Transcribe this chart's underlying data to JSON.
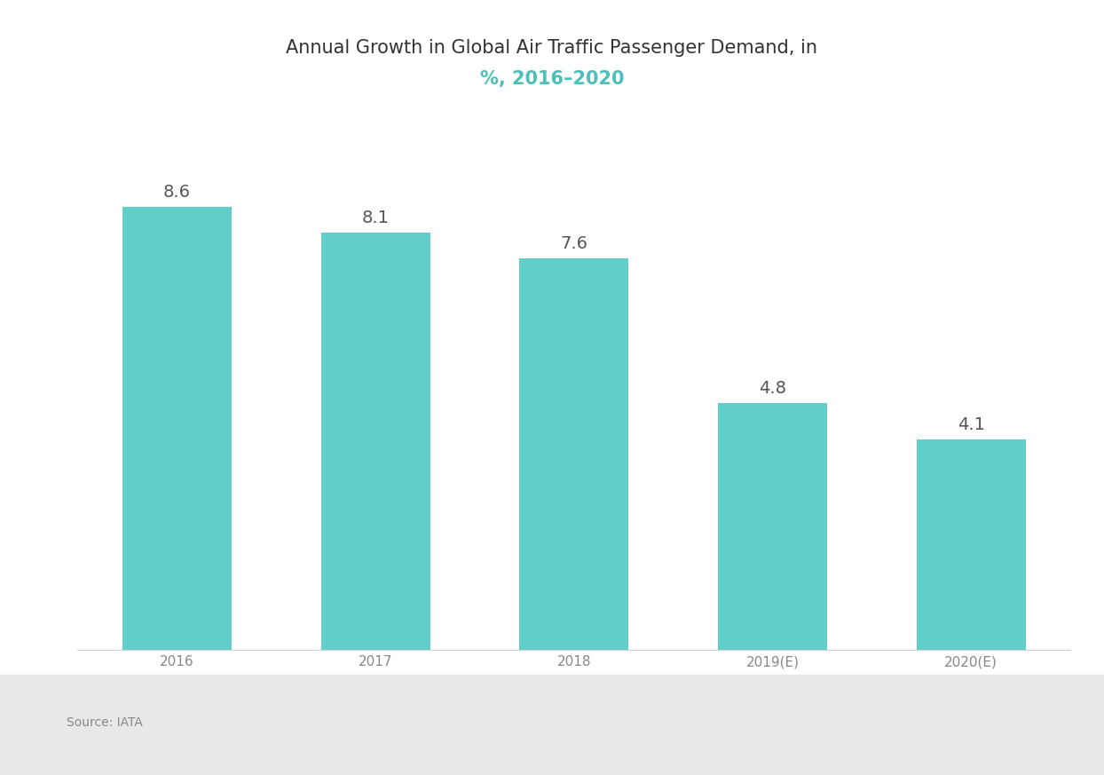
{
  "title_line1": "Annual Growth in Global Air Traffic Passenger Demand, in",
  "title_line2": "%, 2016–2020",
  "categories": [
    "2016",
    "2017",
    "2018",
    "2019(E)",
    "2020(E)"
  ],
  "values": [
    8.6,
    8.1,
    7.6,
    4.8,
    4.1
  ],
  "bar_color": "#62CEC9",
  "background_color": "#ffffff",
  "plot_bg_color": "#ffffff",
  "title_color": "#333333",
  "title_highlight_color": "#4DBFBA",
  "value_label_color": "#555555",
  "xlabel_color": "#888888",
  "baseline_color": "#cccccc",
  "bottom_strip_color": "#e8e8e8",
  "source_text": "Source: IATA",
  "ylim": [
    0,
    10.5
  ],
  "bar_width": 0.55,
  "title_fontsize": 15,
  "value_fontsize": 14,
  "xlabel_fontsize": 11,
  "source_fontsize": 10
}
